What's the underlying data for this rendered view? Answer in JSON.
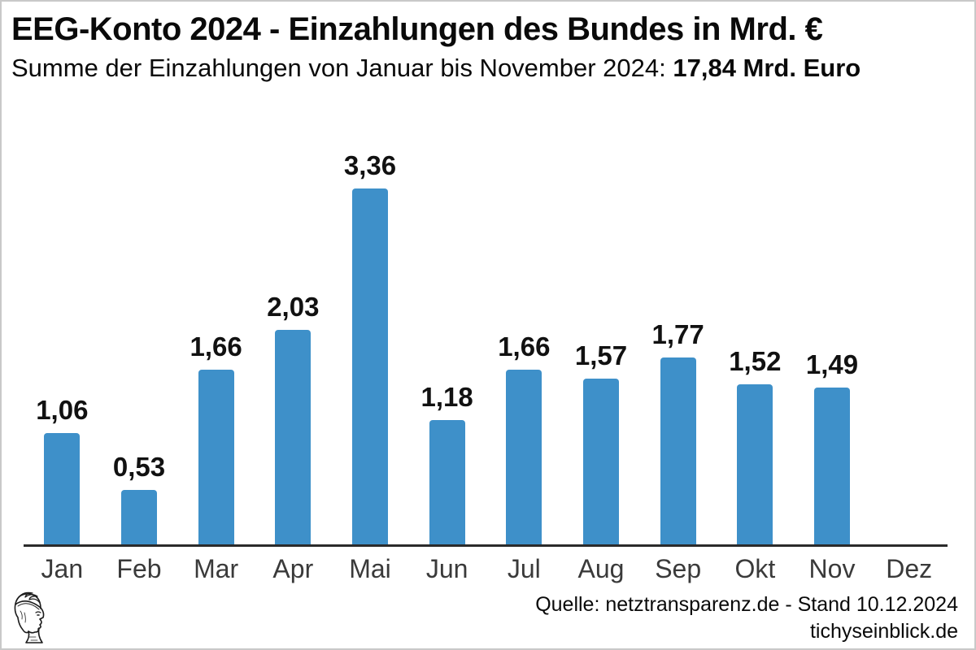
{
  "header": {
    "title": "EEG-Konto 2024 - Einzahlungen des Bundes in Mrd. €",
    "subtitle_prefix": "Summe der Einzahlungen von Januar bis November 2024: ",
    "subtitle_total": "17,84 Mrd. Euro"
  },
  "chart_data": {
    "type": "bar",
    "title": "EEG-Konto 2024 - Einzahlungen des Bundes in Mrd. €",
    "subtitle": "Summe der Einzahlungen von Januar bis November 2024: 17,84 Mrd. Euro",
    "categories": [
      "Jan",
      "Feb",
      "Mar",
      "Apr",
      "Mai",
      "Jun",
      "Jul",
      "Aug",
      "Sep",
      "Okt",
      "Nov",
      "Dez"
    ],
    "values": [
      1.06,
      0.53,
      1.66,
      2.03,
      3.36,
      1.18,
      1.66,
      1.57,
      1.77,
      1.52,
      1.49,
      null
    ],
    "value_labels": [
      "1,06",
      "0,53",
      "1,66",
      "2,03",
      "3,36",
      "1,18",
      "1,66",
      "1,57",
      "1,77",
      "1,52",
      "1,49",
      ""
    ],
    "xlabel": "",
    "ylabel": "Mrd. €",
    "ylim": [
      0,
      3.6
    ],
    "grid": false,
    "legend": null,
    "bar_color": "#3e90c9"
  },
  "footer": {
    "source_line": "Quelle: netztransparenz.de - Stand 10.12.2024",
    "site_line": "tichyseinblick.de"
  },
  "logo": {
    "name": "tichys-einblick-hermes-logo"
  },
  "colors": {
    "bar": "#3e90c9",
    "axis": "#2b2b2b",
    "month_label": "#3a3a3a",
    "text": "#0a0a0a",
    "border": "#c9c9c9"
  }
}
